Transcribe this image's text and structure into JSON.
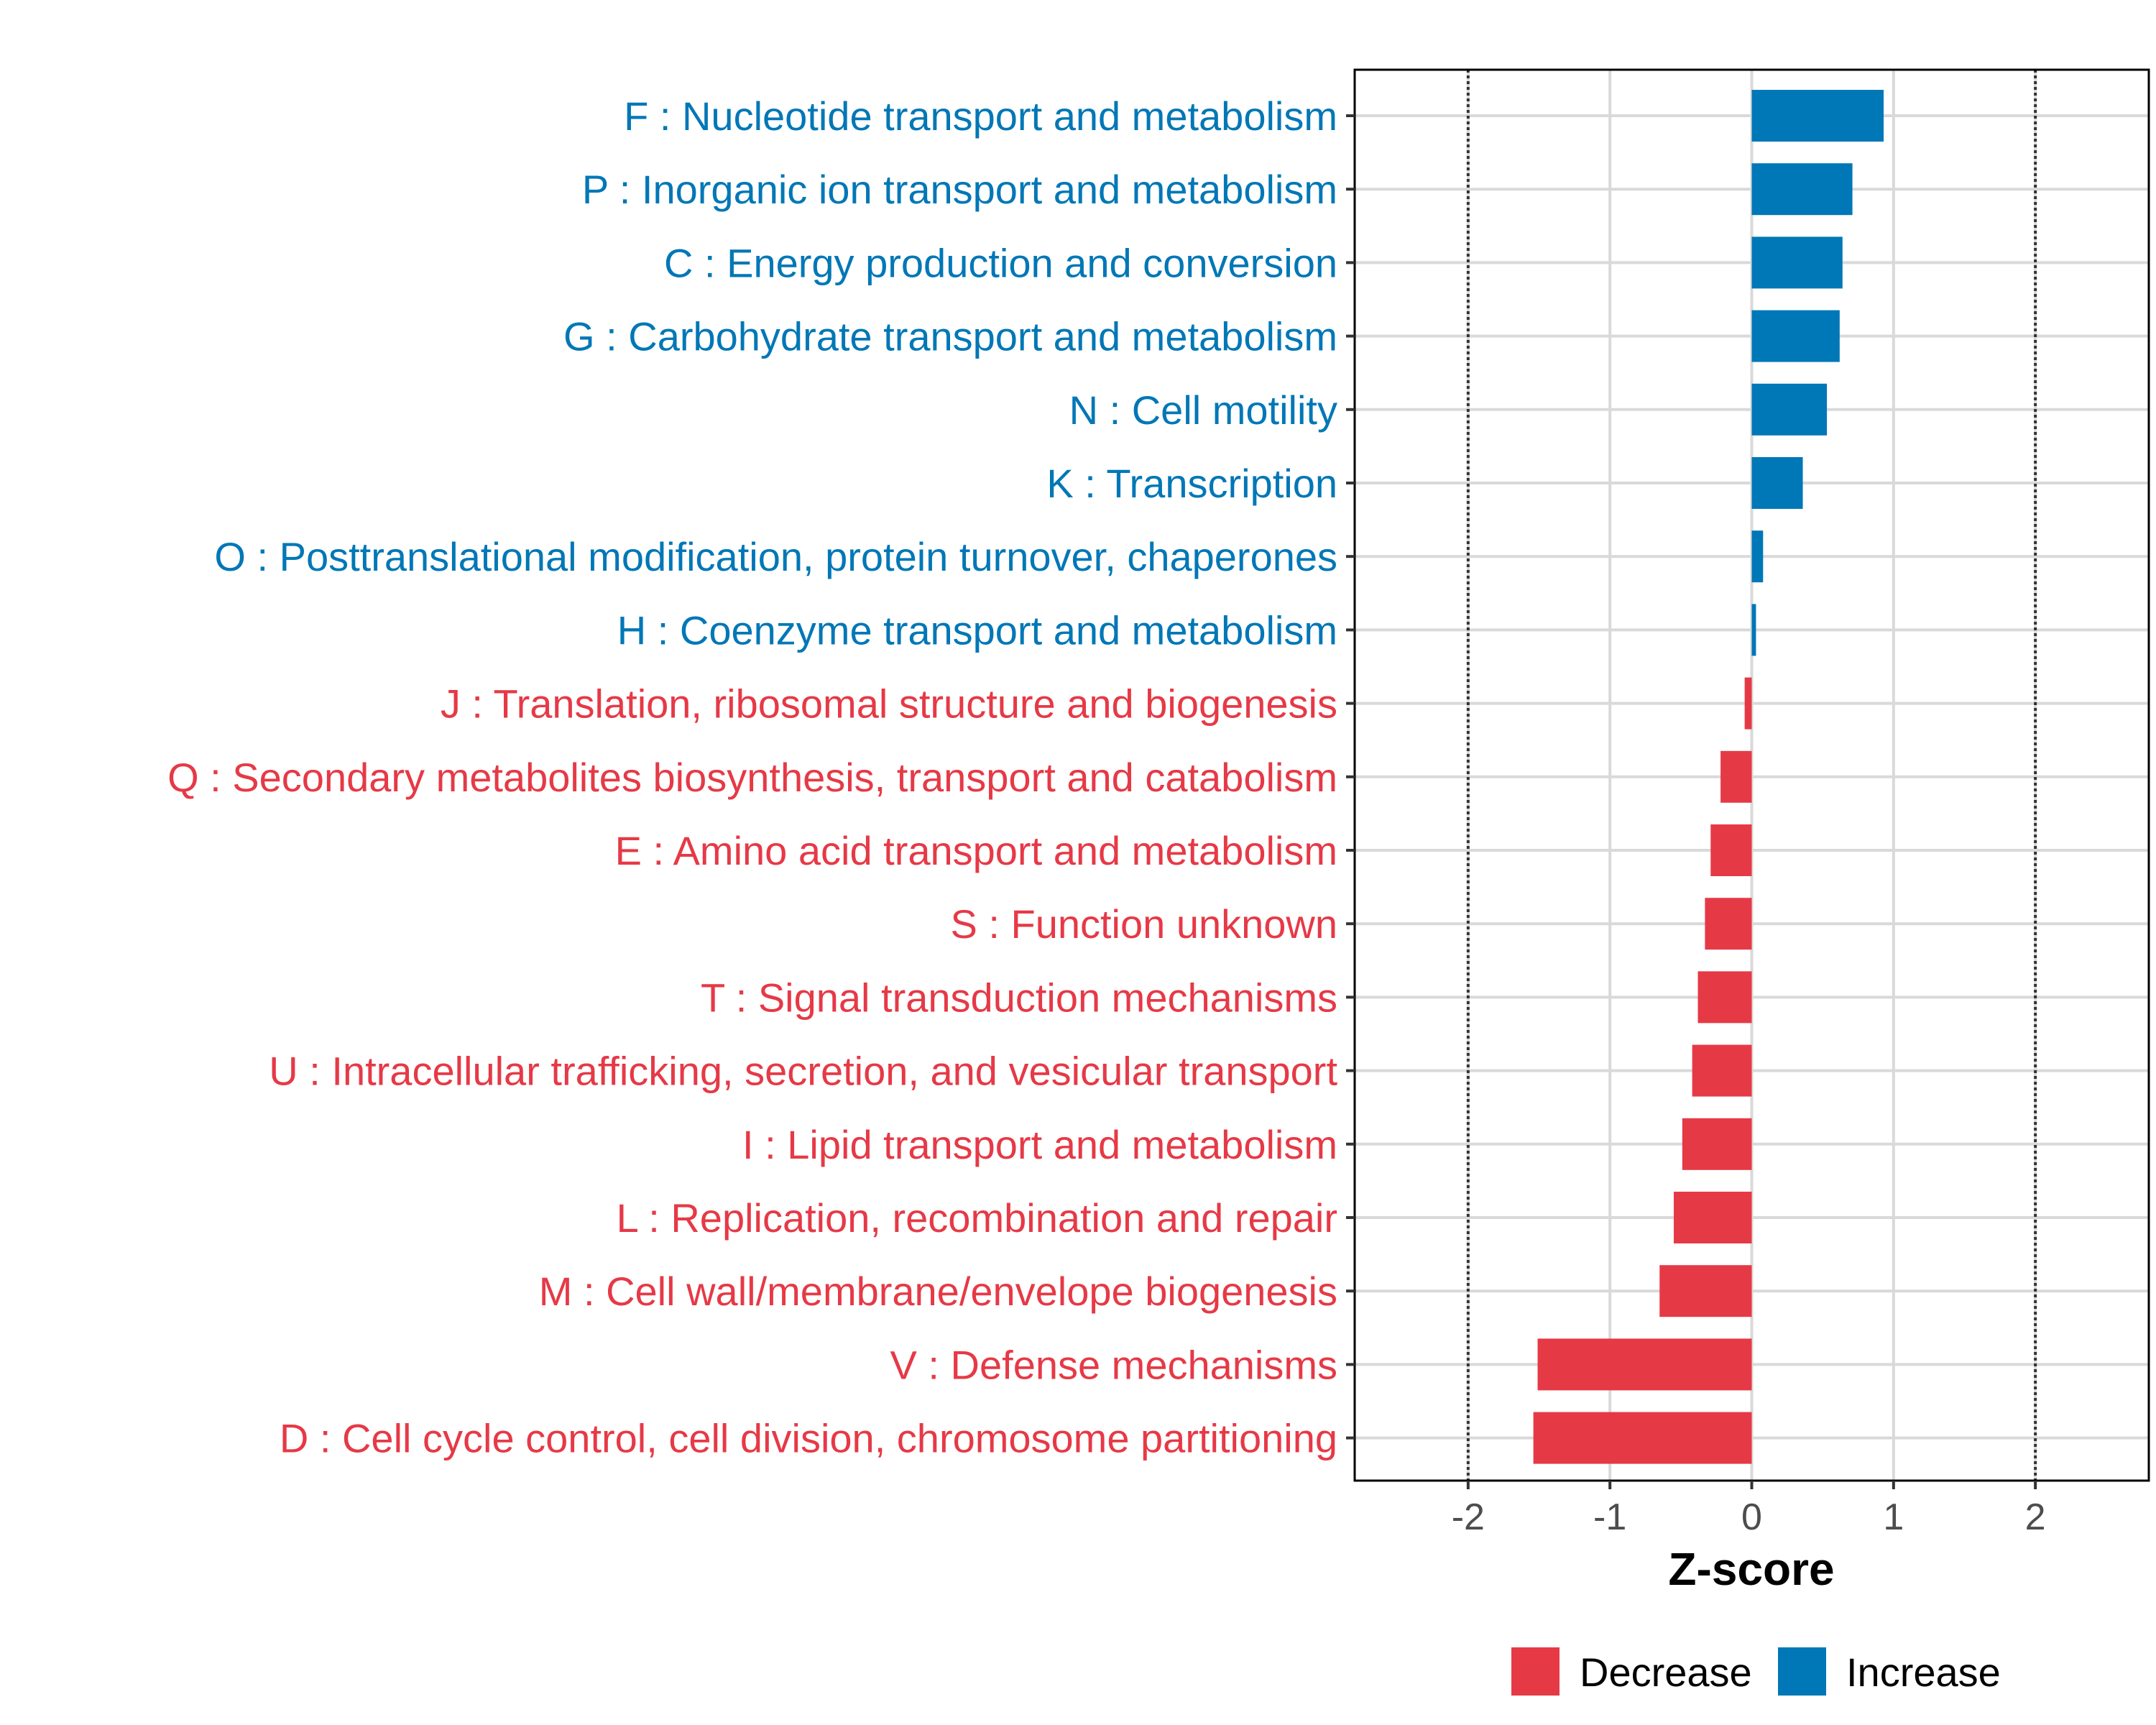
{
  "chart_data": {
    "type": "bar",
    "orientation": "horizontal",
    "title": "",
    "xlabel": "Z-score",
    "ylabel": "",
    "xlim": [
      -2.8,
      2.8
    ],
    "x_ticks": [
      -2,
      -1,
      0,
      1,
      2
    ],
    "x_tick_labels": [
      "-2",
      "-1",
      "0",
      "1",
      "2"
    ],
    "reference_lines": [
      -2,
      2
    ],
    "grid": true,
    "legend_position": "bottom",
    "colors": {
      "Decrease": "#e63946",
      "Increase": "#0077b6"
    },
    "legend": [
      {
        "name": "Decrease",
        "color": "#e63946"
      },
      {
        "name": "Increase",
        "color": "#0077b6"
      }
    ],
    "categories": [
      "F : Nucleotide transport and metabolism",
      "P : Inorganic ion transport and metabolism",
      "C : Energy production and conversion",
      "G : Carbohydrate transport and metabolism",
      "N : Cell motility",
      "K : Transcription",
      "O : Posttranslational modification, protein turnover, chaperones",
      "H : Coenzyme transport and metabolism",
      "J : Translation, ribosomal structure and biogenesis",
      "Q : Secondary metabolites biosynthesis, transport and catabolism",
      "E : Amino acid transport and metabolism",
      "S : Function unknown",
      "T : Signal transduction mechanisms",
      "U : Intracellular trafficking, secretion, and vesicular transport",
      "I : Lipid transport and metabolism",
      "L : Replication, recombination and repair",
      "M : Cell wall/membrane/envelope biogenesis",
      "V : Defense mechanisms",
      "D : Cell cycle control, cell division, chromosome partitioning"
    ],
    "values": [
      0.93,
      0.71,
      0.64,
      0.62,
      0.53,
      0.36,
      0.08,
      0.03,
      -0.05,
      -0.22,
      -0.29,
      -0.33,
      -0.38,
      -0.42,
      -0.49,
      -0.55,
      -0.65,
      -1.51,
      -1.54
    ],
    "direction": [
      "Increase",
      "Increase",
      "Increase",
      "Increase",
      "Increase",
      "Increase",
      "Increase",
      "Increase",
      "Decrease",
      "Decrease",
      "Decrease",
      "Decrease",
      "Decrease",
      "Decrease",
      "Decrease",
      "Decrease",
      "Decrease",
      "Decrease",
      "Decrease"
    ]
  }
}
